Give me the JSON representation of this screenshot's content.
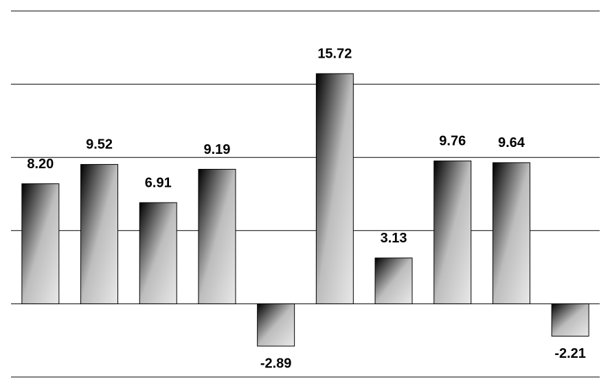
{
  "chart_data": {
    "type": "bar",
    "categories": [
      null,
      null,
      null,
      null,
      null,
      null,
      null,
      null,
      null,
      null
    ],
    "values": [
      8.2,
      9.52,
      6.91,
      9.19,
      -2.89,
      15.72,
      3.13,
      9.76,
      9.64,
      -2.21
    ],
    "value_labels": [
      "8.20",
      "9.52",
      "6.91",
      "9.19",
      "-2.89",
      "15.72",
      "3.13",
      "9.76",
      "9.64",
      "-2.21"
    ],
    "ylim": [
      -5,
      20
    ],
    "yticks": [
      -5,
      0,
      5,
      10,
      15,
      20
    ],
    "grid": true
  }
}
